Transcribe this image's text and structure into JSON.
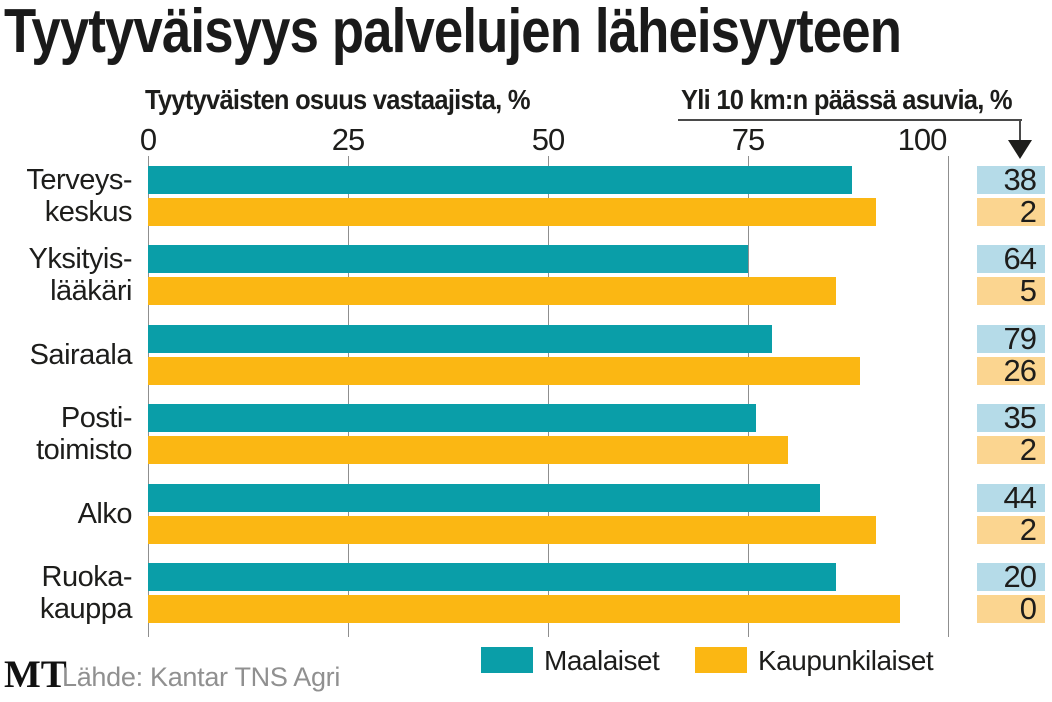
{
  "title": "Tyytyväisyys palvelujen läheisyyteen",
  "headers": {
    "left": "Tyytyväisten osuus vastaajista, %",
    "right": "Yli 10 km:n päässä asuvia, %"
  },
  "legend": {
    "items": [
      {
        "label": "Maalaiset",
        "color": "#0a9ea8"
      },
      {
        "label": "Kaupunkilaiset",
        "color": "#fbb713"
      }
    ]
  },
  "footer": {
    "logo": "MT",
    "source": "Lähde: Kantar TNS Agri"
  },
  "colors": {
    "bar_teal": "#0a9ea8",
    "bar_orange": "#fbb713",
    "chip_blue": "#b5dbe8",
    "chip_peach": "#fbd590",
    "gridline": "#8f8f8f",
    "text": "#1d1d1b",
    "muted_text": "#909090",
    "arrow_line": "#4a4a4a"
  },
  "chart_data": {
    "type": "bar",
    "orientation": "horizontal",
    "title": "Tyytyväisyys palvelujen läheisyyteen",
    "xlabel": "Tyytyväisten osuus vastaajista, %",
    "xlim": [
      0,
      100
    ],
    "xticks": [
      0,
      25,
      50,
      75,
      100
    ],
    "grid": true,
    "legend_position": "bottom",
    "categories": [
      "Terveyskeskus",
      "Yksityislääkäri",
      "Sairaala",
      "Postitoimisto",
      "Alko",
      "Ruokakauppa"
    ],
    "category_label_lines": [
      [
        "Terveys-",
        "keskus"
      ],
      [
        "Yksityis-",
        "lääkäri"
      ],
      [
        "Sairaala"
      ],
      [
        "Posti-",
        "toimisto"
      ],
      [
        "Alko"
      ],
      [
        "Ruoka-",
        "kauppa"
      ]
    ],
    "series": [
      {
        "name": "Maalaiset",
        "color": "#0a9ea8",
        "values": [
          88,
          75,
          78,
          76,
          84,
          86
        ]
      },
      {
        "name": "Kaupunkilaiset",
        "color": "#fbb713",
        "values": [
          91,
          86,
          89,
          80,
          91,
          94
        ]
      }
    ],
    "right_column": {
      "header": "Yli 10 km:n päässä asuvia, %",
      "series": [
        {
          "name": "Maalaiset",
          "chip_color": "#b5dbe8",
          "values": [
            38,
            64,
            79,
            35,
            44,
            20
          ]
        },
        {
          "name": "Kaupunkilaiset",
          "chip_color": "#fbd590",
          "values": [
            2,
            5,
            26,
            2,
            2,
            0
          ]
        }
      ]
    }
  }
}
